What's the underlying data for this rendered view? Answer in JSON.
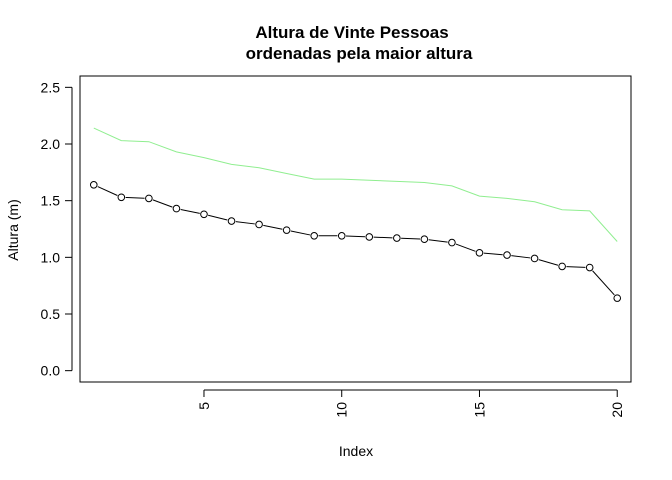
{
  "chart_data": {
    "type": "line",
    "title_line1": "Altura de Vinte Pessoas",
    "title_line2": "ordenadas pela maior altura",
    "xlabel": "Index",
    "ylabel": "Altura (m)",
    "xlim": [
      0.5,
      20.5
    ],
    "ylim": [
      -0.1,
      2.6
    ],
    "xticks": [
      5,
      10,
      15,
      20
    ],
    "yticks": [
      0.0,
      0.5,
      1.0,
      1.5,
      2.0,
      2.5
    ],
    "xtick_labels": [
      "5",
      "10",
      "15",
      "20"
    ],
    "ytick_labels": [
      "0.0",
      "0.5",
      "1.0",
      "1.5",
      "2.0",
      "2.5"
    ],
    "x": [
      1,
      2,
      3,
      4,
      5,
      6,
      7,
      8,
      9,
      10,
      11,
      12,
      13,
      14,
      15,
      16,
      17,
      18,
      19,
      20
    ],
    "series": [
      {
        "style": "line-with-circles",
        "color": "#000000",
        "values": [
          1.64,
          1.53,
          1.52,
          1.43,
          1.38,
          1.32,
          1.29,
          1.24,
          1.19,
          1.19,
          1.18,
          1.17,
          1.16,
          1.13,
          1.04,
          1.02,
          0.99,
          0.92,
          0.91,
          0.64
        ]
      },
      {
        "style": "line",
        "color": "#90ee90",
        "values": [
          2.14,
          2.03,
          2.02,
          1.93,
          1.88,
          1.82,
          1.79,
          1.74,
          1.69,
          1.69,
          1.68,
          1.67,
          1.66,
          1.63,
          1.54,
          1.52,
          1.49,
          1.42,
          1.41,
          1.14
        ]
      }
    ]
  }
}
